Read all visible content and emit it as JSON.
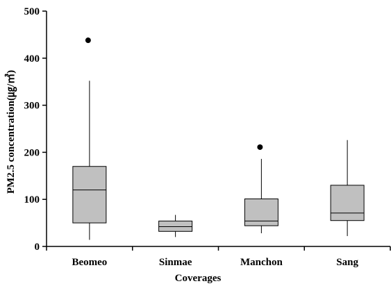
{
  "chart_data": {
    "type": "box",
    "xlabel": "Coverages",
    "ylabel": "PM2.5 concentration(㎍/㎥)",
    "ylim": [
      0,
      500
    ],
    "yticks": [
      0,
      100,
      200,
      300,
      400,
      500
    ],
    "grid": false,
    "legend": "none",
    "box_color": "#c0c0c0",
    "categories": [
      "Beomeo",
      "Sinmae",
      "Manchon",
      "Sang"
    ],
    "boxes": [
      {
        "category": "Beomeo",
        "whisker_low": 14,
        "q1": 50,
        "median": 120,
        "q3": 170,
        "whisker_high": 352,
        "outliers": [
          438
        ]
      },
      {
        "category": "Sinmae",
        "whisker_low": 20,
        "q1": 32,
        "median": 42,
        "q3": 54,
        "whisker_high": 67,
        "outliers": []
      },
      {
        "category": "Manchon",
        "whisker_low": 28,
        "q1": 44,
        "median": 54,
        "q3": 101,
        "whisker_high": 186,
        "outliers": [
          211
        ]
      },
      {
        "category": "Sang",
        "whisker_low": 22,
        "q1": 55,
        "median": 71,
        "q3": 130,
        "whisker_high": 226,
        "outliers": []
      }
    ]
  }
}
